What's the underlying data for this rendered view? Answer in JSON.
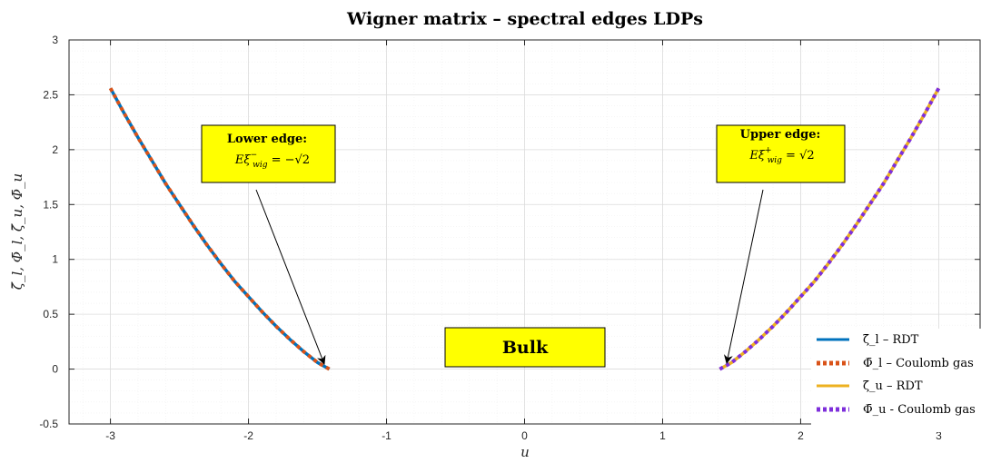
{
  "chart_data": {
    "type": "line",
    "title": "Wigner matrix – spectral edges LDPs",
    "xlabel": "u",
    "ylabel": "ζ̄_l, Φ̄_l, ζ̄_u, Φ̄_u",
    "xlim": [
      -3.3,
      3.3
    ],
    "ylim": [
      -0.5,
      3
    ],
    "xticks": [
      -3,
      -2,
      -1,
      0,
      1,
      2,
      3
    ],
    "xtick_labels": [
      "-3",
      "-2",
      "-1",
      "0",
      "1",
      "2",
      "3"
    ],
    "yticks": [
      -0.5,
      0,
      0.5,
      1,
      1.5,
      2,
      2.5,
      3
    ],
    "ytick_labels": [
      "-0.5",
      "0",
      "0.5",
      "1",
      "1.5",
      "2",
      "2.5",
      "3"
    ],
    "grid": true,
    "legend_position": "bottom-right",
    "series": [
      {
        "name": "ζ̄_l – RDT",
        "color": "#0072BD",
        "style": "solid",
        "x": [
          -3.0,
          -2.9,
          -2.8,
          -2.7,
          -2.6,
          -2.5,
          -2.4,
          -2.3,
          -2.2,
          -2.1,
          -2.0,
          -1.9,
          -1.8,
          -1.7,
          -1.6,
          -1.5,
          -1.414
        ],
        "y": [
          2.56,
          2.33,
          2.11,
          1.9,
          1.69,
          1.5,
          1.31,
          1.13,
          0.96,
          0.8,
          0.66,
          0.52,
          0.39,
          0.27,
          0.16,
          0.06,
          0.0
        ]
      },
      {
        "name": "Φ̄_l – Coulomb gas",
        "color": "#D95319",
        "style": "dotted",
        "x": [
          -3.0,
          -2.9,
          -2.8,
          -2.7,
          -2.6,
          -2.5,
          -2.4,
          -2.3,
          -2.2,
          -2.1,
          -2.0,
          -1.9,
          -1.8,
          -1.7,
          -1.6,
          -1.5,
          -1.414
        ],
        "y": [
          2.56,
          2.33,
          2.11,
          1.9,
          1.69,
          1.5,
          1.31,
          1.13,
          0.96,
          0.8,
          0.66,
          0.52,
          0.39,
          0.27,
          0.16,
          0.06,
          0.0
        ]
      },
      {
        "name": "ζ̄_u – RDT",
        "color": "#EDB120",
        "style": "solid",
        "x": [
          1.414,
          1.5,
          1.6,
          1.7,
          1.8,
          1.9,
          2.0,
          2.1,
          2.2,
          2.3,
          2.4,
          2.5,
          2.6,
          2.7,
          2.8,
          2.9,
          3.0
        ],
        "y": [
          0.0,
          0.06,
          0.16,
          0.27,
          0.39,
          0.52,
          0.66,
          0.8,
          0.96,
          1.13,
          1.31,
          1.5,
          1.69,
          1.9,
          2.11,
          2.33,
          2.56
        ]
      },
      {
        "name": "Φ̄_u - Coulomb gas",
        "color": "#7E2FDB",
        "style": "dotted",
        "x": [
          1.414,
          1.5,
          1.6,
          1.7,
          1.8,
          1.9,
          2.0,
          2.1,
          2.2,
          2.3,
          2.4,
          2.5,
          2.6,
          2.7,
          2.8,
          2.9,
          3.0
        ],
        "y": [
          0.0,
          0.06,
          0.16,
          0.27,
          0.39,
          0.52,
          0.66,
          0.8,
          0.96,
          1.13,
          1.31,
          1.5,
          1.69,
          1.9,
          2.11,
          2.33,
          2.56
        ]
      }
    ],
    "annotations": [
      {
        "id": "lower",
        "title": "Lower edge:",
        "math_base": "Eξ",
        "math_sup": "−",
        "math_sub": "wig",
        "math_rhs": " = −√2",
        "arrow_to": [
          -1.414,
          0.0
        ],
        "box_color": "#FFFF00"
      },
      {
        "id": "upper",
        "title": "Upper edge:",
        "math_base": "Eξ",
        "math_sup": "+",
        "math_sub": "wig",
        "math_rhs": " = √2",
        "arrow_to": [
          1.414,
          0.0
        ],
        "box_color": "#FFFF00"
      },
      {
        "id": "bulk",
        "title": "Bulk",
        "box_color": "#FFFF00"
      }
    ]
  }
}
